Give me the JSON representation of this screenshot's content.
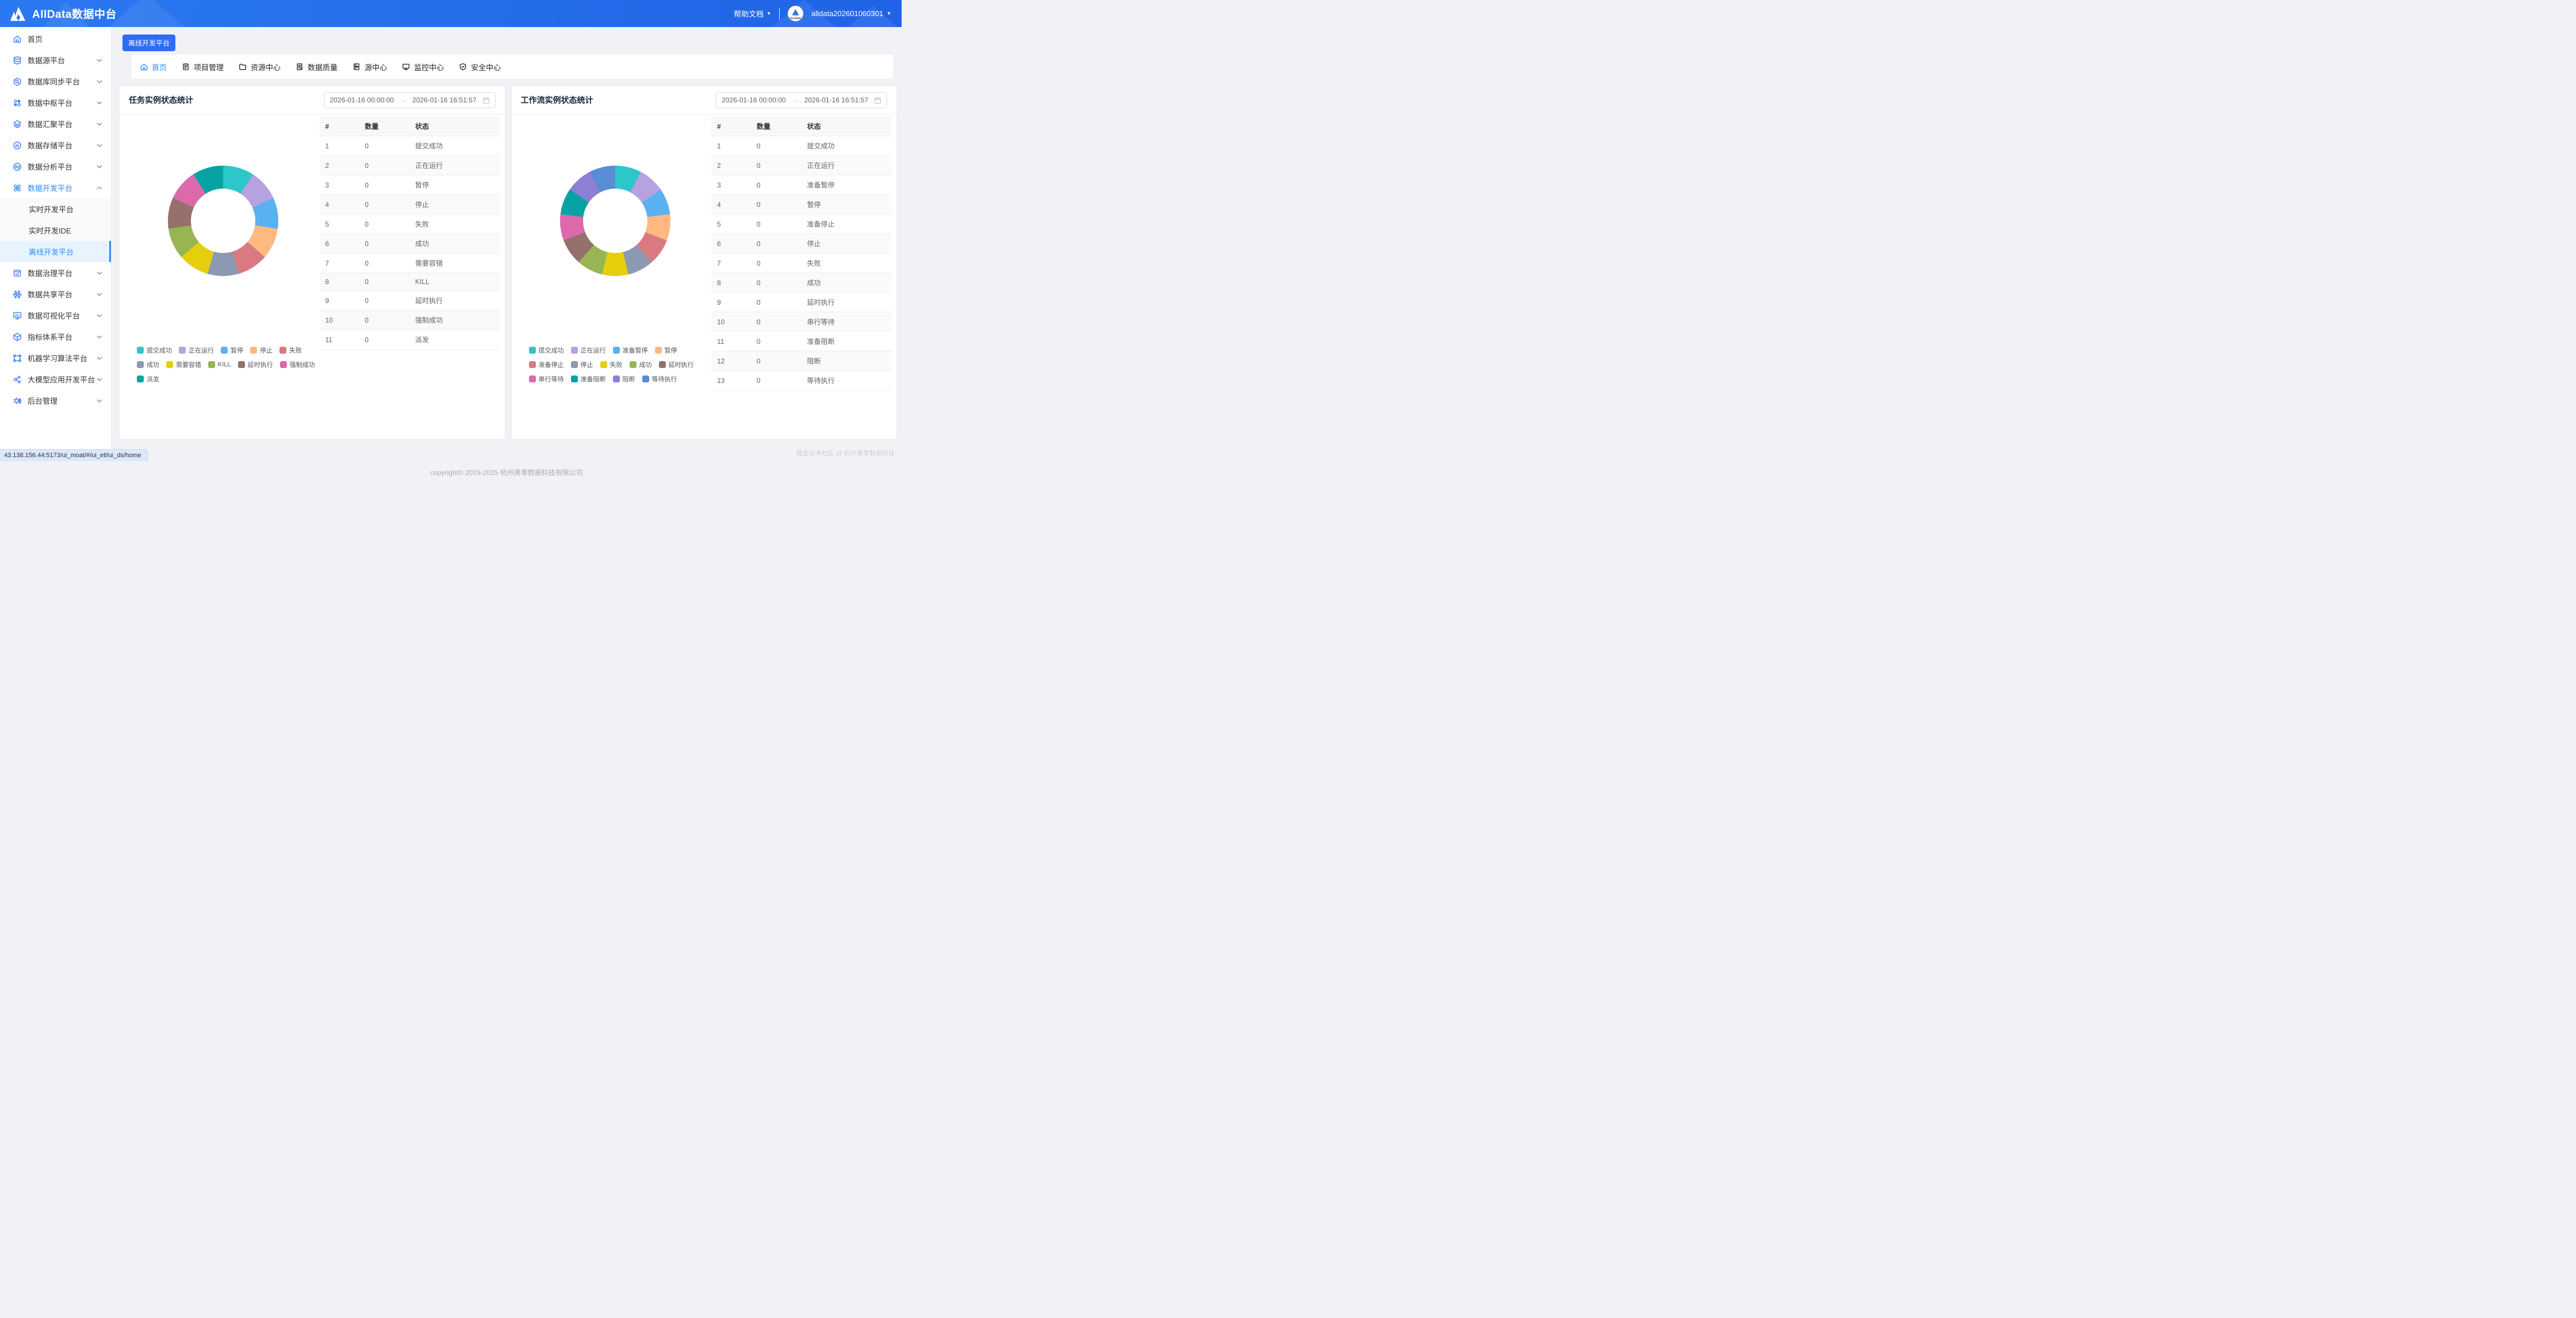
{
  "header": {
    "title": "AllData数据中台",
    "help_label": "帮助文档",
    "username": "alldata202601060301",
    "avatar_text": "ALLData"
  },
  "sidebar": {
    "items": [
      {
        "icon": "home-icon",
        "label": "首页",
        "chevron": false
      },
      {
        "icon": "datasource-icon",
        "label": "数据源平台",
        "chevron": true
      },
      {
        "icon": "db-sync-icon",
        "label": "数据库同步平台",
        "chevron": true
      },
      {
        "icon": "data-hub-icon",
        "label": "数据中枢平台",
        "chevron": true
      },
      {
        "icon": "data-aggregate-icon",
        "label": "数据汇聚平台",
        "chevron": true
      },
      {
        "icon": "data-storage-icon",
        "label": "数据存储平台",
        "chevron": true
      },
      {
        "icon": "data-analysis-icon",
        "label": "数据分析平台",
        "chevron": true
      },
      {
        "icon": "data-dev-icon",
        "label": "数据开发平台",
        "chevron": true,
        "expanded": true,
        "active": true,
        "children": [
          {
            "label": "实时开发平台",
            "active": false
          },
          {
            "label": "实时开发IDE",
            "active": false
          },
          {
            "label": "离线开发平台",
            "active": true
          }
        ]
      },
      {
        "icon": "data-governance-icon",
        "label": "数据治理平台",
        "chevron": true
      },
      {
        "icon": "data-share-icon",
        "label": "数据共享平台",
        "chevron": true
      },
      {
        "icon": "data-visualization-icon",
        "label": "数据可视化平台",
        "chevron": true
      },
      {
        "icon": "metrics-icon",
        "label": "指标体系平台",
        "chevron": true
      },
      {
        "icon": "ml-icon",
        "label": "机器学习算法平台",
        "chevron": true
      },
      {
        "icon": "llm-icon",
        "label": "大模型应用开发平台",
        "chevron": true
      },
      {
        "icon": "admin-icon",
        "label": "后台管理",
        "chevron": true
      }
    ]
  },
  "main": {
    "platform_tag": "离线开发平台",
    "tabs": [
      {
        "icon": "home-icon",
        "label": "首页",
        "active": true
      },
      {
        "icon": "project-icon",
        "label": "项目管理",
        "active": false
      },
      {
        "icon": "folder-icon",
        "label": "资源中心",
        "active": false
      },
      {
        "icon": "quality-icon",
        "label": "数据质量",
        "active": false
      },
      {
        "icon": "source-icon",
        "label": "源中心",
        "active": false
      },
      {
        "icon": "monitor-icon",
        "label": "监控中心",
        "active": false
      },
      {
        "icon": "shield-icon",
        "label": "安全中心",
        "active": false
      }
    ],
    "panels": [
      {
        "title": "任务实例状态统计",
        "date_start": "2026-01-16 00:00:00",
        "date_end": "2026-01-16 16:51:57",
        "table": {
          "headers": [
            "#",
            "数量",
            "状态"
          ],
          "rows": [
            [
              "1",
              "0",
              "提交成功"
            ],
            [
              "2",
              "0",
              "正在运行"
            ],
            [
              "3",
              "0",
              "暂停"
            ],
            [
              "4",
              "0",
              "停止"
            ],
            [
              "5",
              "0",
              "失败"
            ],
            [
              "6",
              "0",
              "成功"
            ],
            [
              "7",
              "0",
              "需要容错"
            ],
            [
              "8",
              "0",
              "KILL"
            ],
            [
              "9",
              "0",
              "延时执行"
            ],
            [
              "10",
              "0",
              "强制成功"
            ],
            [
              "11",
              "0",
              "派发"
            ]
          ]
        },
        "chart": {
          "type": "pie",
          "slices": [
            {
              "name": "提交成功",
              "value": 0,
              "color": "#2ec7c9"
            },
            {
              "name": "正在运行",
              "value": 0,
              "color": "#b6a2de"
            },
            {
              "name": "暂停",
              "value": 0,
              "color": "#5ab1ef"
            },
            {
              "name": "停止",
              "value": 0,
              "color": "#ffb980"
            },
            {
              "name": "失败",
              "value": 0,
              "color": "#d87a80"
            },
            {
              "name": "成功",
              "value": 0,
              "color": "#8d98b3"
            },
            {
              "name": "需要容错",
              "value": 0,
              "color": "#e5cf0d"
            },
            {
              "name": "KILL",
              "value": 0,
              "color": "#97b552"
            },
            {
              "name": "延时执行",
              "value": 0,
              "color": "#95706d"
            },
            {
              "name": "强制成功",
              "value": 0,
              "color": "#dc69aa"
            },
            {
              "name": "派发",
              "value": 0,
              "color": "#07a2a4"
            }
          ]
        }
      },
      {
        "title": "工作流实例状态统计",
        "date_start": "2026-01-16 00:00:00",
        "date_end": "2026-01-16 16:51:57",
        "table": {
          "headers": [
            "#",
            "数量",
            "状态"
          ],
          "rows": [
            [
              "1",
              "0",
              "提交成功"
            ],
            [
              "2",
              "0",
              "正在运行"
            ],
            [
              "3",
              "0",
              "准备暂停"
            ],
            [
              "4",
              "0",
              "暂停"
            ],
            [
              "5",
              "0",
              "准备停止"
            ],
            [
              "6",
              "0",
              "停止"
            ],
            [
              "7",
              "0",
              "失败"
            ],
            [
              "8",
              "0",
              "成功"
            ],
            [
              "9",
              "0",
              "延时执行"
            ],
            [
              "10",
              "0",
              "串行等待"
            ],
            [
              "11",
              "0",
              "准备阻断"
            ],
            [
              "12",
              "0",
              "阻断"
            ],
            [
              "13",
              "0",
              "等待执行"
            ]
          ]
        },
        "chart": {
          "type": "pie",
          "slices": [
            {
              "name": "提交成功",
              "value": 0,
              "color": "#2ec7c9"
            },
            {
              "name": "正在运行",
              "value": 0,
              "color": "#b6a2de"
            },
            {
              "name": "准备暂停",
              "value": 0,
              "color": "#5ab1ef"
            },
            {
              "name": "暂停",
              "value": 0,
              "color": "#ffb980"
            },
            {
              "name": "准备停止",
              "value": 0,
              "color": "#d87a80"
            },
            {
              "name": "停止",
              "value": 0,
              "color": "#8d98b3"
            },
            {
              "name": "失败",
              "value": 0,
              "color": "#e5cf0d"
            },
            {
              "name": "成功",
              "value": 0,
              "color": "#97b552"
            },
            {
              "name": "延时执行",
              "value": 0,
              "color": "#95706d"
            },
            {
              "name": "串行等待",
              "value": 0,
              "color": "#dc69aa"
            },
            {
              "name": "准备阻断",
              "value": 0,
              "color": "#07a2a4"
            },
            {
              "name": "阻断",
              "value": 0,
              "color": "#8d7fd3"
            },
            {
              "name": "等待执行",
              "value": 0,
              "color": "#588dd5"
            }
          ]
        }
      }
    ],
    "footer_copyright": "copyright© 2019-2025 杭州奥零数据科技有限公司",
    "footer_watermark": "掘金技术社区 @ 杭州奥零数据科技"
  },
  "statusbar": {
    "url": "43.138.156.44:5173/ui_moat/#/ui_etl/ui_ds/home"
  }
}
